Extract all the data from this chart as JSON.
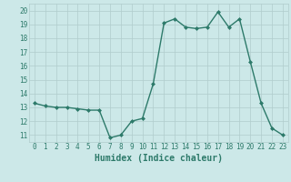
{
  "x": [
    0,
    1,
    2,
    3,
    4,
    5,
    6,
    7,
    8,
    9,
    10,
    11,
    12,
    13,
    14,
    15,
    16,
    17,
    18,
    19,
    20,
    21,
    22,
    23
  ],
  "y": [
    13.3,
    13.1,
    13.0,
    13.0,
    12.9,
    12.8,
    12.8,
    10.8,
    11.0,
    12.0,
    12.2,
    14.7,
    19.1,
    19.4,
    18.8,
    18.7,
    18.8,
    19.9,
    18.8,
    19.4,
    16.3,
    13.3,
    11.5,
    11.0
  ],
  "line_color": "#2d7a6a",
  "marker": "D",
  "marker_size": 2.0,
  "bg_color": "#cce8e8",
  "grid_color": "#b0cccc",
  "xlabel": "Humidex (Indice chaleur)",
  "xlim": [
    -0.5,
    23.5
  ],
  "ylim": [
    10.5,
    20.5
  ],
  "yticks": [
    11,
    12,
    13,
    14,
    15,
    16,
    17,
    18,
    19,
    20
  ],
  "xticks": [
    0,
    1,
    2,
    3,
    4,
    5,
    6,
    7,
    8,
    9,
    10,
    11,
    12,
    13,
    14,
    15,
    16,
    17,
    18,
    19,
    20,
    21,
    22,
    23
  ],
  "tick_fontsize": 5.5,
  "xlabel_fontsize": 7.0,
  "linewidth": 1.0
}
